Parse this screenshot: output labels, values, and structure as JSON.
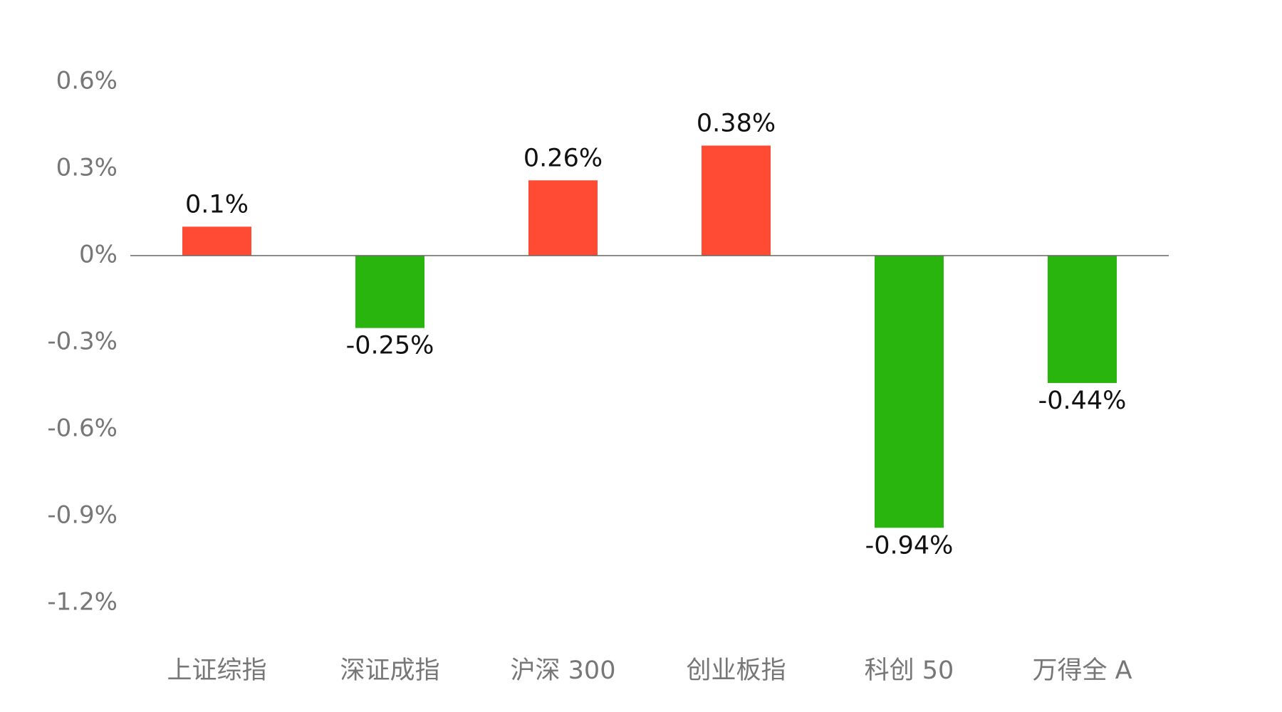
{
  "chart_data": {
    "type": "bar",
    "categories": [
      "上证综指",
      "深证成指",
      "沪深 300",
      "创业板指",
      "科创 50",
      "万得全 A"
    ],
    "values": [
      0.1,
      -0.25,
      0.26,
      0.38,
      -0.94,
      -0.44
    ],
    "value_labels": [
      "0.1%",
      "-0.25%",
      "0.26%",
      "0.38%",
      "-0.94%",
      "-0.44%"
    ],
    "colors": [
      "#ff4b33",
      "#2ab40e",
      "#ff4b33",
      "#ff4b33",
      "#2ab40e",
      "#2ab40e"
    ],
    "ylim": [
      -1.2,
      0.6
    ],
    "yticks": [
      {
        "value": 0.6,
        "label": "0.6%"
      },
      {
        "value": 0.3,
        "label": "0.3%"
      },
      {
        "value": 0,
        "label": "0%"
      },
      {
        "value": -0.3,
        "label": "-0.3%"
      },
      {
        "value": -0.6,
        "label": "-0.6%"
      },
      {
        "value": -0.9,
        "label": "-0.9%"
      },
      {
        "value": -1.2,
        "label": "-1.2%"
      }
    ],
    "grid": false
  }
}
